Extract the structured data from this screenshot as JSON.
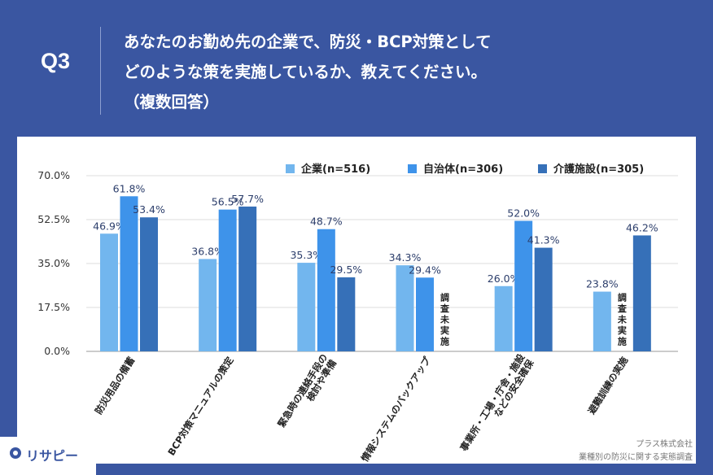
{
  "header": {
    "question_no": "Q3",
    "question_lines": [
      "あなたのお勤め先の企業で、防災・BCP対策として",
      "どのような策を実施しているか、教えてください。",
      "（複数回答）"
    ]
  },
  "colors": {
    "background": "#3a56a1",
    "series": [
      "#72b6ee",
      "#3e93ea",
      "#3670b8"
    ],
    "grid": "#dddddd",
    "label_text": "#2c3e6b"
  },
  "chart_data": {
    "type": "bar",
    "categories": [
      "防災用品の備蓄",
      "BCP対策マニュアルの策定",
      "緊急時の連絡手段の検討や準備",
      "情報システムのバックアップ",
      "事業所・工場・庁舎・施設などの安全確保",
      "避難訓練の実施"
    ],
    "series": [
      {
        "name": "企業(n=516)",
        "values": [
          46.9,
          36.8,
          35.3,
          34.3,
          26.0,
          23.8
        ]
      },
      {
        "name": "自治体(n=306)",
        "values": [
          61.8,
          56.5,
          48.7,
          29.4,
          52.0,
          null
        ]
      },
      {
        "name": "介護施設(n=305)",
        "values": [
          53.4,
          57.7,
          29.5,
          null,
          41.3,
          46.2
        ]
      }
    ],
    "value_labels": [
      [
        "46.9%",
        "36.8%",
        "35.3%",
        "34.3%",
        "26.0%",
        "23.8%"
      ],
      [
        "61.8%",
        "56.5%",
        "48.7%",
        "29.4%",
        "52.0%",
        ""
      ],
      [
        "53.4%",
        "57.7%",
        "29.5%",
        "",
        "41.3%",
        "46.2%"
      ]
    ],
    "not_surveyed_note": "調査未実施",
    "not_surveyed": [
      {
        "category_index": 3,
        "series_index": 2
      },
      {
        "category_index": 5,
        "series_index": 1
      }
    ],
    "ylim": [
      0,
      70
    ],
    "yticks": [
      0,
      17.5,
      35,
      52.5,
      70
    ],
    "ytick_labels": [
      "0.0%",
      "17.5%",
      "35.0%",
      "52.5%",
      "70.0%"
    ],
    "legend_position": "top-right",
    "grid": true
  },
  "footer": {
    "brand": "リサピー",
    "source_lines": [
      "プラス株式会社",
      "業種別の防災に関する実態調査"
    ]
  }
}
